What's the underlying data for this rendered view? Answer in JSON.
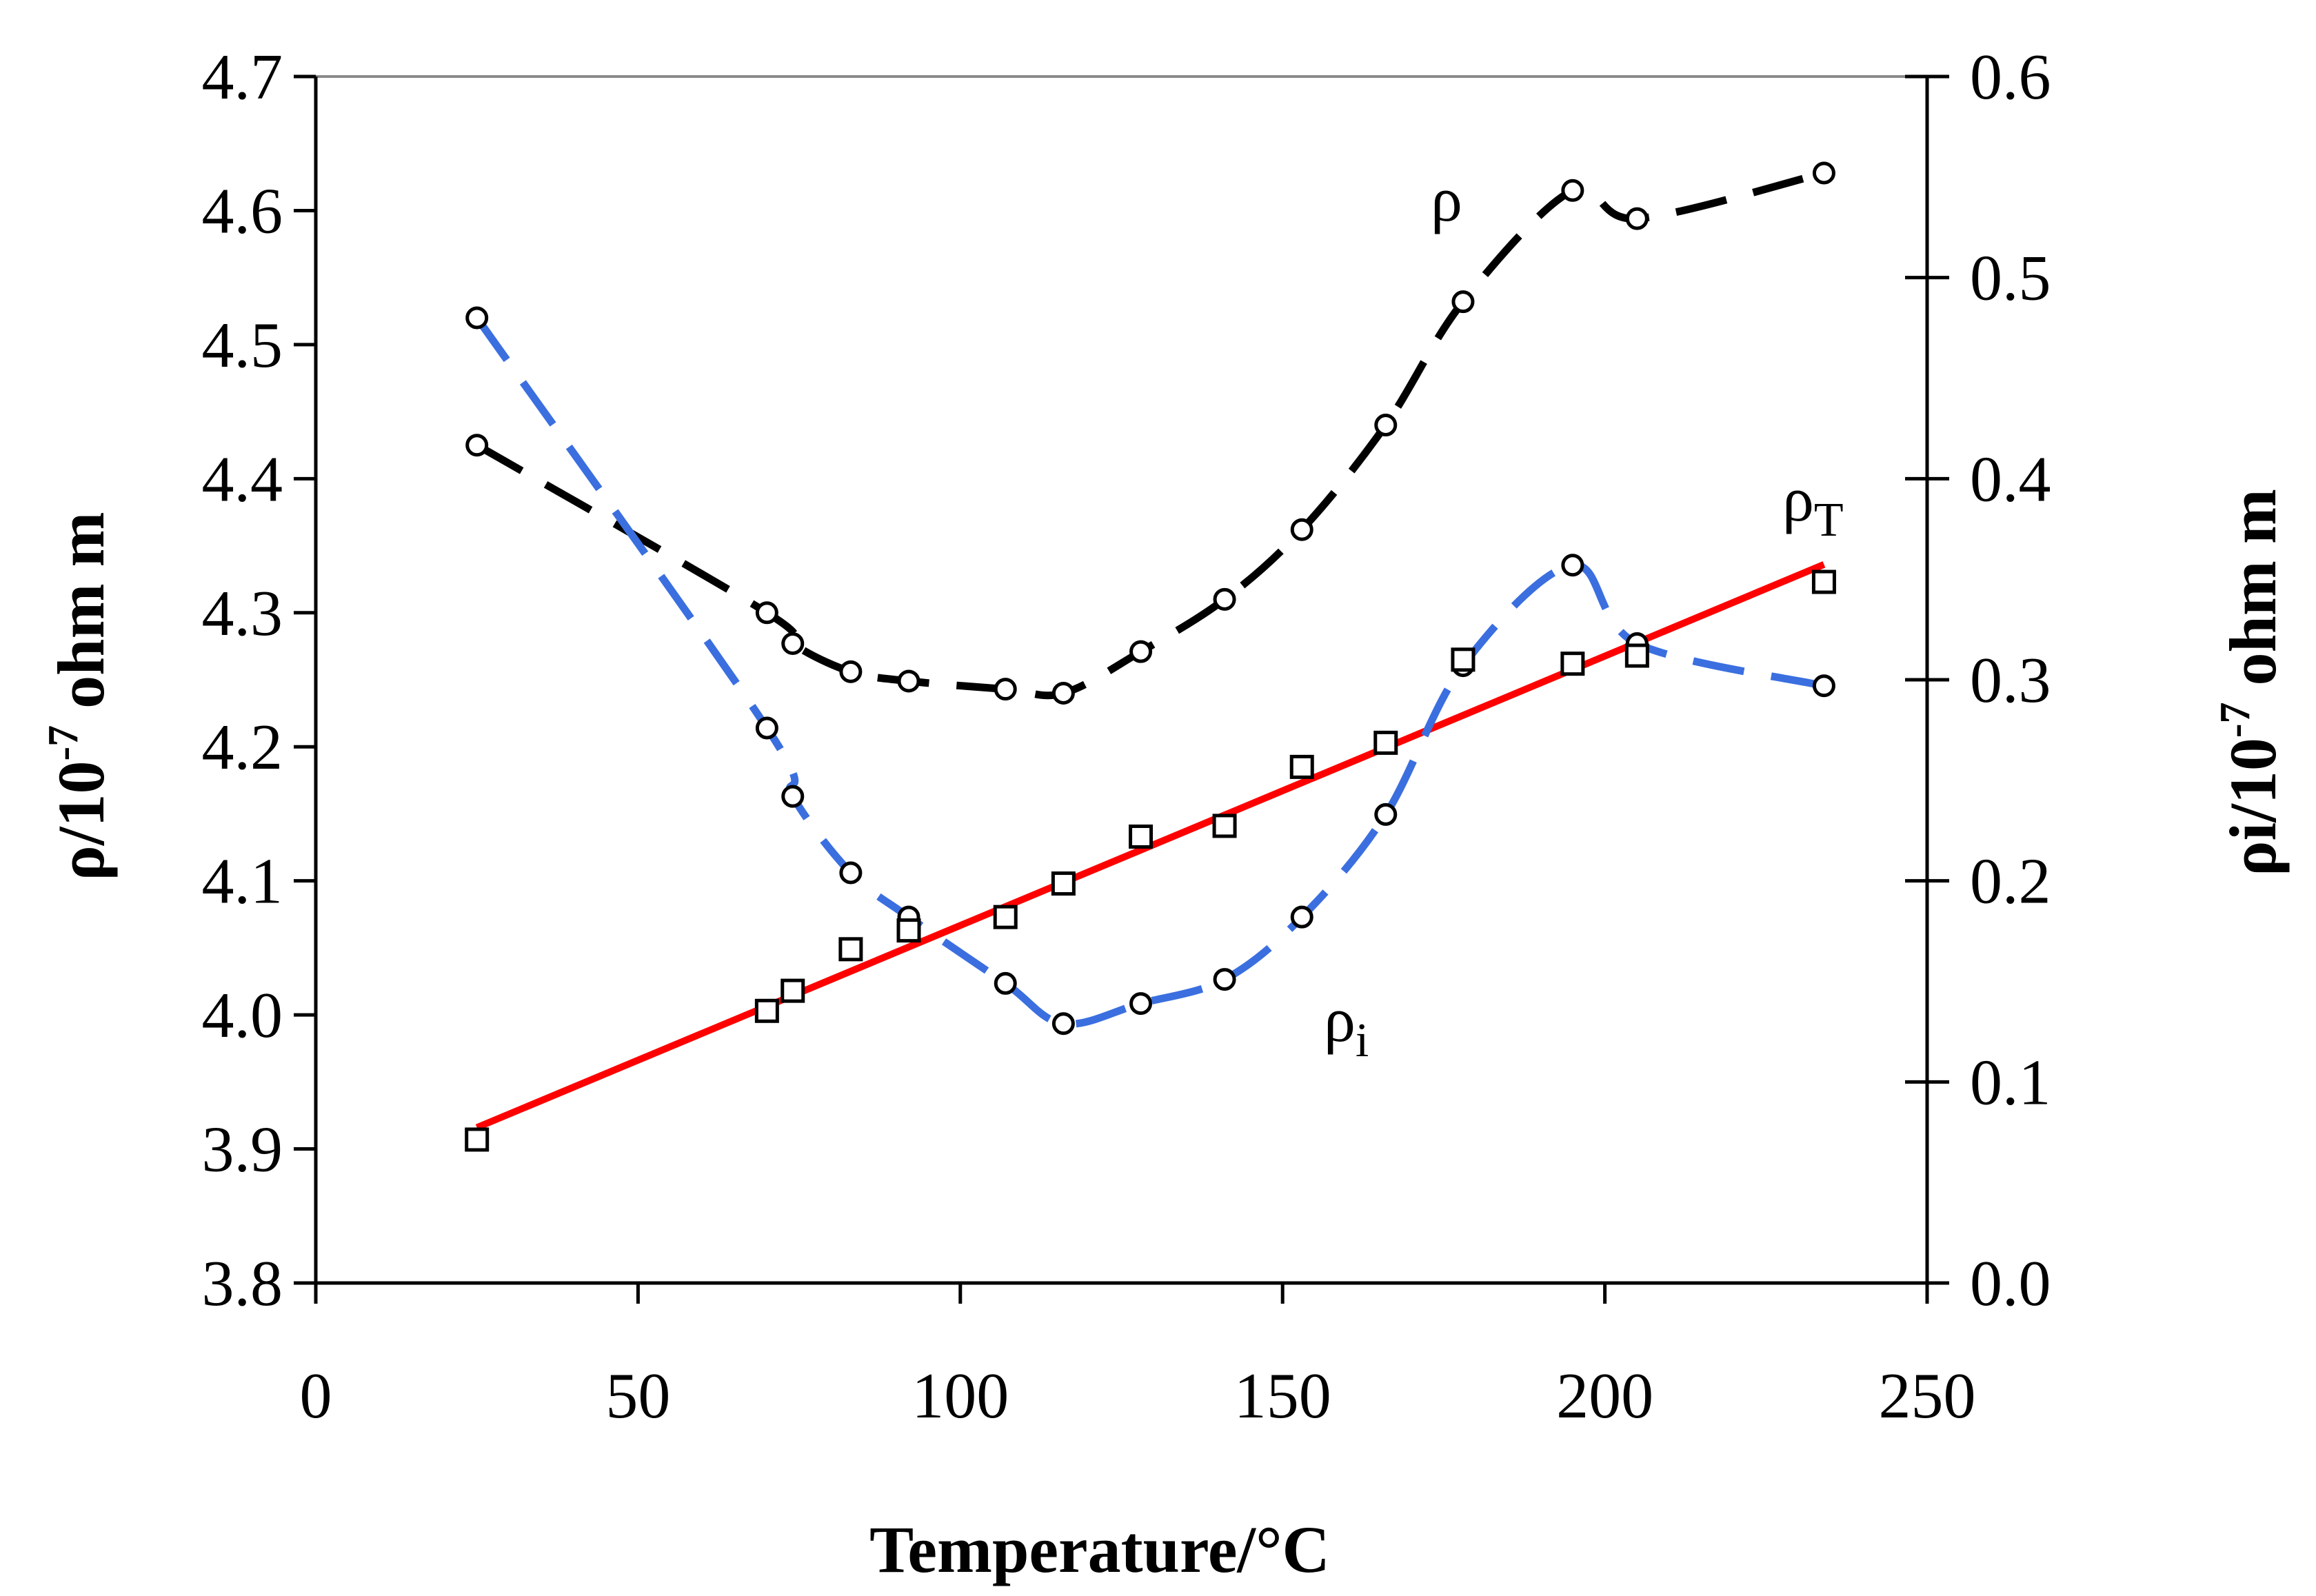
{
  "chart_data": {
    "type": "line",
    "xlabel": "Temperature/°C",
    "ylabel_left": {
      "main": "ρ/10",
      "sup": "-7",
      "rest": " ohm m"
    },
    "ylabel_right": {
      "main": "ρi/10",
      "sup": "-7",
      "rest": " ohm m"
    },
    "xlim": [
      0,
      250
    ],
    "ylim_left": [
      3.8,
      4.7
    ],
    "ylim_right": [
      0.0,
      0.6
    ],
    "x_ticks": [
      "0",
      "50",
      "100",
      "150",
      "200",
      "250"
    ],
    "y_left_ticks": [
      "3.8",
      "3.9",
      "4.0",
      "4.1",
      "4.2",
      "4.3",
      "4.4",
      "4.5",
      "4.6",
      "4.7"
    ],
    "y_right_ticks": [
      "0.0",
      "0.1",
      "0.2",
      "0.3",
      "0.4",
      "0.5",
      "0.6"
    ],
    "series": [
      {
        "name": "ρ",
        "axis": "left",
        "color": "#000000",
        "style": "dashed",
        "marker": "circle",
        "x": [
          25,
          70,
          74,
          83,
          92,
          107,
          116,
          128,
          141,
          153,
          166,
          178,
          195,
          205,
          234
        ],
        "y": [
          4.425,
          4.3,
          4.277,
          4.256,
          4.249,
          4.243,
          4.24,
          4.271,
          4.31,
          4.362,
          4.44,
          4.532,
          4.615,
          4.594,
          4.628
        ],
        "label": {
          "main": "ρ",
          "sub": ""
        }
      },
      {
        "name": "ρi",
        "axis": "right",
        "color": "#3b6fe0",
        "style": "dashed",
        "marker": "circle",
        "x": [
          25,
          70,
          74,
          83,
          92,
          107,
          116,
          128,
          141,
          153,
          166,
          178,
          195,
          205,
          234
        ],
        "y": [
          0.48,
          0.276,
          0.242,
          0.204,
          0.182,
          0.149,
          0.129,
          0.139,
          0.151,
          0.182,
          0.233,
          0.307,
          0.357,
          0.318,
          0.297
        ],
        "label": {
          "main": "ρ",
          "sub": "i"
        }
      },
      {
        "name": "ρT",
        "axis": "left",
        "color": "#000000",
        "style": "none",
        "marker": "square",
        "x": [
          25,
          70,
          74,
          83,
          92,
          107,
          116,
          128,
          141,
          153,
          166,
          178,
          195,
          205,
          234
        ],
        "y": [
          3.907,
          4.003,
          4.018,
          4.049,
          4.063,
          4.073,
          4.098,
          4.133,
          4.141,
          4.185,
          4.203,
          4.265,
          4.262,
          4.268,
          4.323
        ],
        "label": {
          "main": "ρ",
          "sub": "T"
        }
      }
    ],
    "fit_line": {
      "name": "ρT linear fit",
      "axis": "left",
      "color": "#ff0000",
      "x": [
        25,
        234
      ],
      "y": [
        3.916,
        4.336
      ]
    }
  }
}
